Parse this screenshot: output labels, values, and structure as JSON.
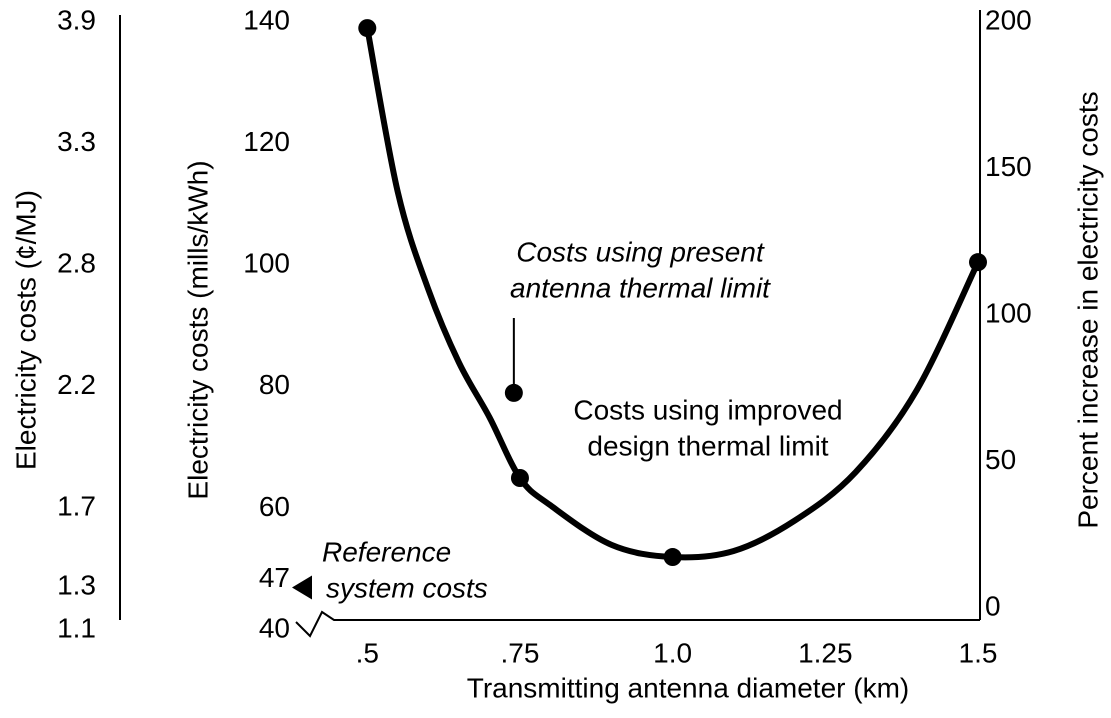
{
  "chart_data": {
    "type": "line",
    "x_label": "Transmitting antenna diameter (km)",
    "y_label": "Electricity costs (mills/kWh)",
    "y3_label": "Electricity costs (¢/MJ)",
    "y2_label": "Percent increase in electricity costs",
    "xlim": [
      0.38,
      1.5
    ],
    "xticks": [
      {
        "value": 0.5,
        "label": ".5"
      },
      {
        "value": 0.75,
        "label": ".75"
      },
      {
        "value": 1.0,
        "label": "1.0"
      },
      1.25,
      1.5
    ],
    "ylim": [
      40,
      140
    ],
    "yticks": [
      40,
      47,
      60,
      80,
      100,
      120,
      140
    ],
    "y3lim": [
      1.111,
      3.889
    ],
    "y3ticks": [
      {
        "value": 1.111,
        "label": "1.1"
      },
      {
        "value": 1.306,
        "label": "1.3"
      },
      {
        "value": 1.667,
        "label": "1.7"
      },
      {
        "value": 2.222,
        "label": "2.2"
      },
      {
        "value": 2.778,
        "label": "2.8"
      },
      {
        "value": 3.333,
        "label": "3.3"
      },
      {
        "value": 3.889,
        "label": "3.9"
      }
    ],
    "y2lim": [
      -7.5,
      200
    ],
    "y2ticks": [
      0,
      50,
      100,
      150,
      200
    ],
    "color": "#000000",
    "curve": {
      "x": [
        0.5,
        0.55,
        0.6,
        0.65,
        0.7,
        0.75,
        0.8,
        0.9,
        1.0,
        1.1,
        1.2,
        1.3,
        1.4,
        1.5
      ],
      "values": [
        139,
        112,
        96,
        84,
        75,
        65,
        60.5,
        54,
        52,
        53,
        58,
        66,
        79.5,
        100.5
      ]
    },
    "points": {
      "x": [
        0.5,
        0.75,
        1.0,
        1.5
      ],
      "values": [
        139,
        65,
        52,
        100.5
      ]
    },
    "present_point": {
      "x": 0.74,
      "value": 79
    },
    "annotations": [
      {
        "lines": [
          "Costs using present",
          "antenna thermal limit"
        ]
      },
      {
        "lines": [
          "Costs using improved",
          "design thermal limit"
        ]
      },
      {
        "lines": [
          "Reference",
          "system costs"
        ]
      }
    ]
  }
}
